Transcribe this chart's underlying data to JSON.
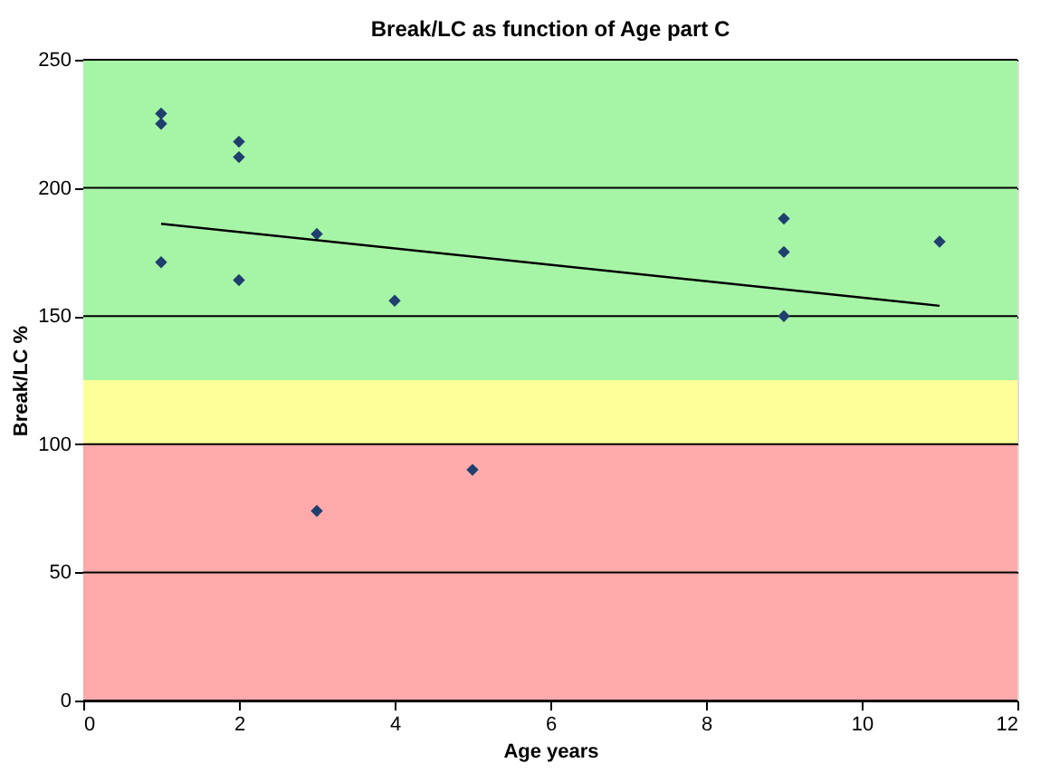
{
  "chart_data": {
    "type": "scatter",
    "title": "Break/LC as function of Age part C",
    "xlabel": "Age years",
    "ylabel": "Break/LC %",
    "xlim": [
      0,
      12
    ],
    "xticks": [
      0,
      2,
      4,
      6,
      8,
      10,
      12
    ],
    "ylim": [
      0,
      250
    ],
    "yticks": [
      0,
      50,
      100,
      150,
      200,
      250
    ],
    "grid": "y",
    "marker": "diamond",
    "series": [
      {
        "color": "#1f3f6f",
        "x": [
          1,
          1,
          1,
          2,
          2,
          2,
          3,
          3,
          4,
          5,
          9,
          9,
          9,
          11
        ],
        "values": [
          229,
          225,
          171,
          218,
          212,
          164,
          182,
          74,
          156,
          90,
          188,
          175,
          150,
          179
        ]
      },
      {
        "type": "line",
        "color": "#000000",
        "x": [
          1,
          11
        ],
        "values": [
          186,
          154
        ],
        "marker": "none"
      }
    ],
    "bands": [
      {
        "axis": "y",
        "from": 125,
        "to": 250,
        "color": "#a6f5a6"
      },
      {
        "axis": "y",
        "from": 100,
        "to": 125,
        "color": "#ffff99"
      },
      {
        "axis": "y",
        "from": 0,
        "to": 100,
        "color": "#ffaaaa"
      }
    ]
  }
}
